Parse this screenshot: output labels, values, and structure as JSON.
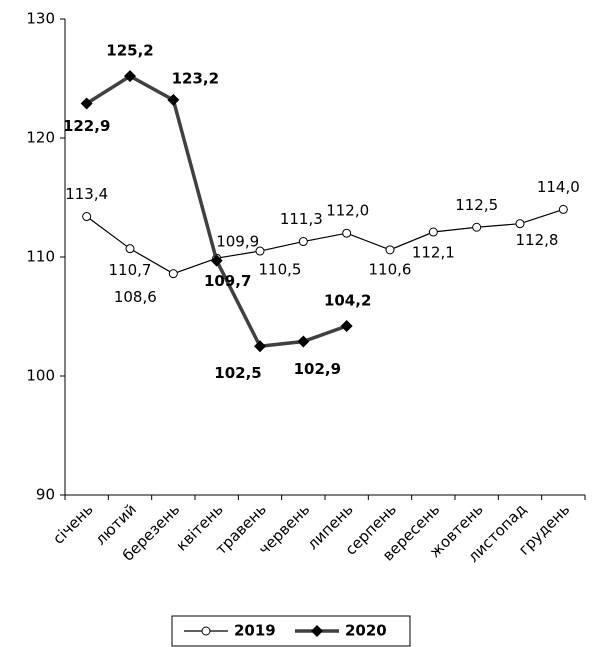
{
  "chart_data": {
    "type": "line",
    "categories": [
      "січень",
      "лютий",
      "березень",
      "квітень",
      "травень",
      "червень",
      "липень",
      "серпень",
      "вересень",
      "жовтень",
      "листопад",
      "грудень"
    ],
    "series": [
      {
        "name": "2019",
        "color": "#000000",
        "marker": "circle",
        "values": [
          113.4,
          110.7,
          108.6,
          109.9,
          110.5,
          111.3,
          112.0,
          110.6,
          112.1,
          112.5,
          112.8,
          114.0
        ],
        "value_labels": [
          "113,4",
          "110,7",
          "108,6",
          "109,9",
          "110,5",
          "111,3",
          "112,0",
          "110,6",
          "112,1",
          "112,5",
          "112,8",
          "114,0"
        ]
      },
      {
        "name": "2020",
        "color": "#404040",
        "marker": "diamond",
        "values": [
          122.9,
          125.2,
          123.2,
          109.7,
          102.5,
          102.9,
          104.2,
          null,
          null,
          null,
          null,
          null
        ],
        "value_labels": [
          "122,9",
          "125,2",
          "123,2",
          "109,7",
          "102,5",
          "102,9",
          "104,2",
          null,
          null,
          null,
          null,
          null
        ]
      }
    ],
    "ylim": [
      90,
      130
    ],
    "yticks": [
      90,
      100,
      110,
      120,
      130
    ],
    "legend": "bottom"
  }
}
